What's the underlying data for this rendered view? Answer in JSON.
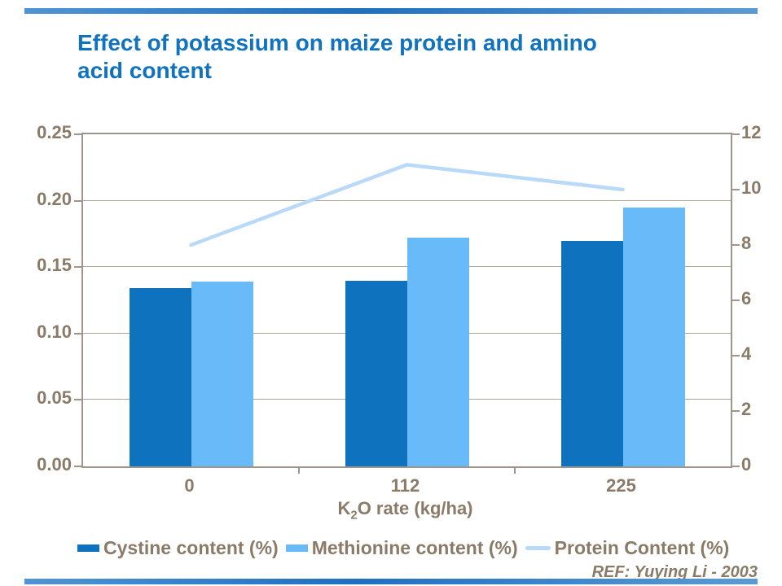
{
  "title": {
    "text": "Effect of potassium on maize protein and amino acid content"
  },
  "footer": {
    "ref": "REF: Yuying Li - 2003"
  },
  "xaxis_title": {
    "prefix": "K",
    "sub": "2",
    "suffix": "O rate (kg/ha)"
  },
  "legend": {
    "items": [
      {
        "label": "Cystine content (%)",
        "marker": "square-dark"
      },
      {
        "label": "Methionine content (%)",
        "marker": "square-light"
      },
      {
        "label": "Protein Content (%)",
        "marker": "line"
      }
    ]
  },
  "colors": {
    "title": "#1173BD",
    "bar_dark": "#0F72BE",
    "bar_light": "#68BAF8",
    "line": "#B9D9F8",
    "text_brown": "#8A7A68",
    "border": "#A0958A",
    "grid": "#AFA497",
    "accent_bar": "#1F6FC0"
  },
  "chart_data": {
    "type": "bar",
    "subtype": "grouped bars with overlaid line (dual axis)",
    "title": "Effect of potassium on maize protein and amino acid content",
    "categories": [
      "0",
      "112",
      "225"
    ],
    "series": [
      {
        "name": "Cystine content (%)",
        "type": "bar",
        "axis": "left",
        "values": [
          0.134,
          0.14,
          0.17
        ]
      },
      {
        "name": "Methionine content (%)",
        "type": "bar",
        "axis": "left",
        "values": [
          0.139,
          0.172,
          0.195
        ]
      },
      {
        "name": "Protein Content (%)",
        "type": "line",
        "axis": "right",
        "values": [
          8.0,
          10.9,
          10.0
        ]
      }
    ],
    "xlabel": "K2O rate (kg/ha)",
    "left_axis": {
      "min": 0,
      "max": 0.25,
      "step": 0.05,
      "tick_labels": [
        "0.00",
        "0.05",
        "0.10",
        "0.15",
        "0.20",
        "0.25"
      ]
    },
    "right_axis": {
      "min": 0,
      "max": 12,
      "step": 2,
      "tick_labels": [
        "0",
        "2",
        "4",
        "6",
        "8",
        "10",
        "12"
      ]
    },
    "grid": "horizontal gridlines at left-axis steps",
    "legend_position": "bottom"
  }
}
